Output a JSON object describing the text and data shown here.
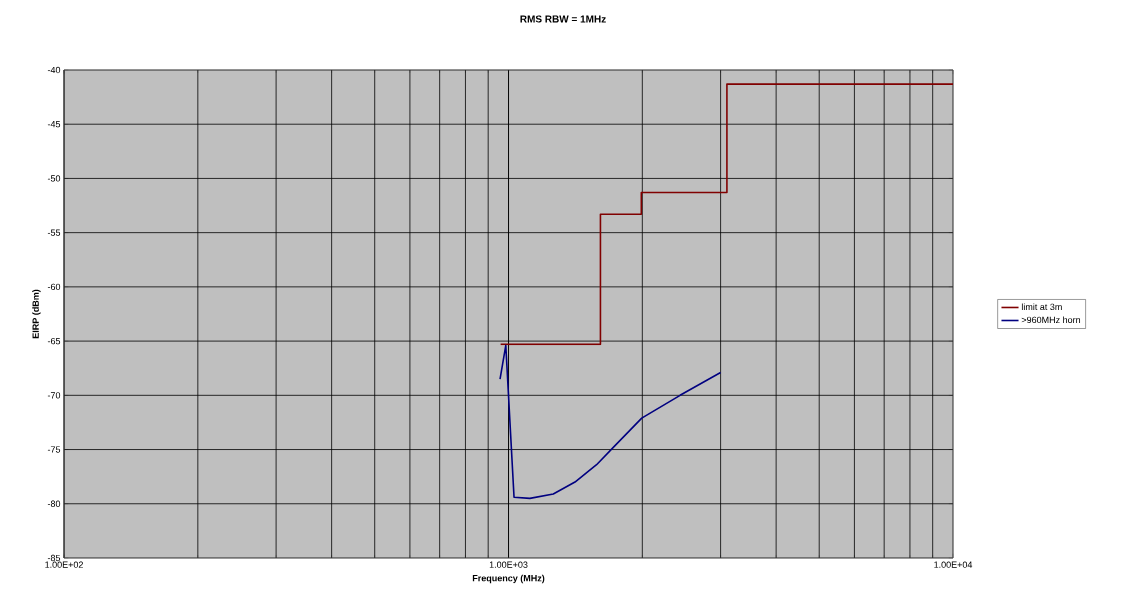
{
  "chart_data": {
    "type": "line",
    "title": "RMS RBW = 1MHz",
    "xlabel": "Frequency (MHz)",
    "ylabel": "EIRP (dBm)",
    "log": "x",
    "grid": true,
    "legend": "right",
    "xlim": [
      100,
      10000
    ],
    "ylim": [
      -85,
      -40
    ],
    "xticks": [
      {
        "value": 100,
        "label": "1.00E+02"
      },
      {
        "value": 1000,
        "label": "1.00E+03"
      },
      {
        "value": 10000,
        "label": "1.00E+04"
      }
    ],
    "yticks": [
      -85,
      -80,
      -75,
      -70,
      -65,
      -60,
      -55,
      -50,
      -45,
      -40
    ],
    "series": [
      {
        "name": "limit at 3m",
        "type": "step",
        "color": "#800000",
        "x": [
          960,
          1610,
          1990,
          3100,
          10000
        ],
        "values": [
          -65.3,
          -53.3,
          -51.3,
          -41.3,
          -41.3
        ]
      },
      {
        "name": ">960MHz horn",
        "color": "#000080",
        "x": [
          957,
          986,
          1029,
          1117,
          1261,
          1411,
          1578,
          1721,
          1994,
          2432,
          3000
        ],
        "values": [
          -68.5,
          -65.4,
          -79.4,
          -79.5,
          -79.1,
          -78.0,
          -76.4,
          -74.8,
          -72.1,
          -70.0,
          -67.9
        ]
      }
    ]
  }
}
